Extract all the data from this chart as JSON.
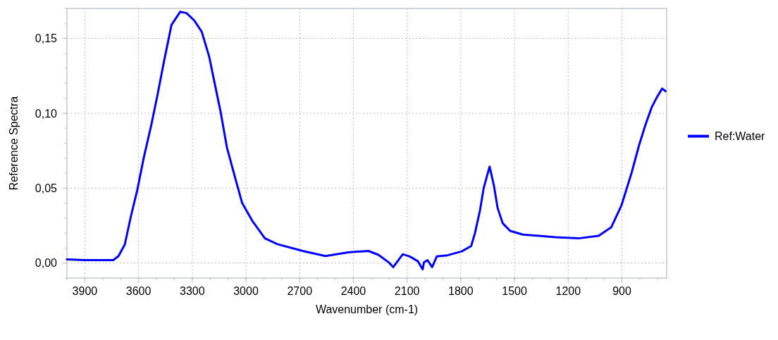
{
  "chart_data": {
    "type": "line",
    "xlabel": "Wavenumber (cm-1)",
    "ylabel": "Reference Spectra",
    "xlim": [
      4000,
      650
    ],
    "xticks": [
      3900,
      3600,
      3300,
      3000,
      2700,
      2400,
      2100,
      1800,
      1500,
      1200,
      900
    ],
    "ylim": [
      -0.01,
      0.17
    ],
    "yticks": [
      {
        "value": 0,
        "label": "0,00"
      },
      {
        "value": 0.05,
        "label": "0,05"
      },
      {
        "value": 0.1,
        "label": "0,10"
      },
      {
        "value": 0.15,
        "label": "0,15"
      }
    ],
    "grid": true,
    "legend": "right",
    "line_style": "solid",
    "marker": "none",
    "series": [
      {
        "name": "Ref:Water",
        "color": "#0000ff",
        "x": [
          4000,
          3900,
          3741,
          3712,
          3677,
          3642,
          3607,
          3571,
          3529,
          3494,
          3459,
          3416,
          3367,
          3332,
          3289,
          3247,
          3205,
          3176,
          3141,
          3106,
          3064,
          3021,
          2965,
          2894,
          2824,
          2683,
          2556,
          2429,
          2316,
          2260,
          2203,
          2177,
          2124,
          2085,
          2039,
          2013,
          2006,
          1986,
          1960,
          1934,
          1874,
          1795,
          1742,
          1721,
          1693,
          1672,
          1639,
          1615,
          1594,
          1566,
          1524,
          1453,
          1270,
          1143,
          1030,
          959,
          903,
          846,
          804,
          769,
          734,
          705,
          675,
          656
        ],
        "values": [
          0.0025,
          0.002,
          0.002,
          0.0047,
          0.0123,
          0.0316,
          0.0488,
          0.0703,
          0.0921,
          0.1123,
          0.134,
          0.159,
          0.1678,
          0.1669,
          0.162,
          0.1544,
          0.1376,
          0.1207,
          0.1006,
          0.077,
          0.0585,
          0.04,
          0.0283,
          0.0165,
          0.0126,
          0.0081,
          0.0047,
          0.0072,
          0.0081,
          0.0055,
          0.0005,
          -0.0027,
          0.0059,
          0.0044,
          0.0012,
          -0.0042,
          0.0005,
          0.002,
          -0.0027,
          0.0044,
          0.0052,
          0.0078,
          0.0114,
          0.0199,
          0.035,
          0.0501,
          0.0644,
          0.0518,
          0.0367,
          0.0266,
          0.0215,
          0.019,
          0.0173,
          0.0165,
          0.0182,
          0.024,
          0.0383,
          0.0602,
          0.0787,
          0.0921,
          0.1039,
          0.1106,
          0.1165,
          0.1148
        ]
      }
    ]
  }
}
